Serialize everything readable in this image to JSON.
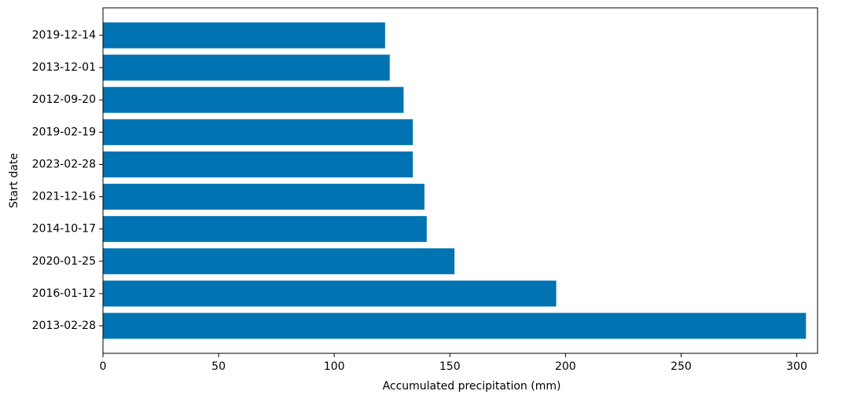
{
  "chart_data": {
    "type": "barh",
    "xlabel": "Accumulated precipitation (mm)",
    "ylabel": "Start date",
    "categories": [
      "2013-02-28",
      "2016-01-12",
      "2020-01-25",
      "2014-10-17",
      "2021-12-16",
      "2023-02-28",
      "2019-02-19",
      "2012-09-20",
      "2013-12-01",
      "2019-12-14"
    ],
    "values": [
      304,
      196,
      152,
      140,
      139,
      134,
      134,
      130,
      124,
      122
    ],
    "color": "#0173b2",
    "xlim": [
      0,
      309
    ],
    "xticks": [
      0,
      50,
      100,
      150,
      200,
      250,
      300
    ]
  }
}
